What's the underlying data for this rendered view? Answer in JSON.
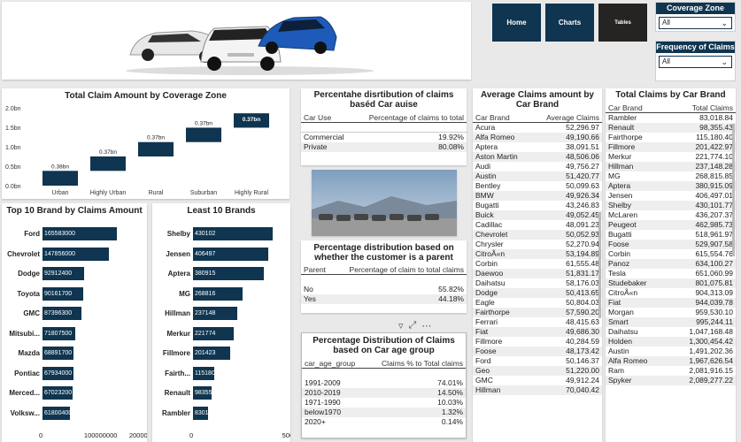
{
  "nav": {
    "home": "Home",
    "charts": "Charts",
    "tables": "Tables"
  },
  "slicers": [
    {
      "title": "Coverage Zone",
      "value": "All"
    },
    {
      "title": "Frequency of Claims",
      "value": "All"
    }
  ],
  "waterfall": {
    "title": "Total Claim Amount by Coverage Zone",
    "yticks": [
      "2.0bn",
      "1.5bn",
      "1.0bn",
      "0.5bn",
      "0.0bn"
    ],
    "chart_data": {
      "type": "bar",
      "categories": [
        "Urban",
        "Highly Urban",
        "Rural",
        "Suburban",
        "Highly Rural"
      ],
      "values": [
        0.38,
        0.37,
        0.37,
        0.37,
        0.37
      ],
      "labels": [
        "0.38bn",
        "0.37bn",
        "0.37bn",
        "0.37bn",
        "0.37bn"
      ],
      "ylim": [
        0,
        2.0
      ]
    }
  },
  "caruse": {
    "title": "Percentahe disrtibution of claims baséd Car auise",
    "headers": [
      "Car Use",
      "Percentage of claims to total"
    ],
    "rows": [
      [
        "Commercial",
        "19.92%"
      ],
      [
        "Private",
        "80.08%"
      ]
    ]
  },
  "avg": {
    "title": "Average Claims amount by Car Brand",
    "headers": [
      "Car Brand",
      "Average Claims"
    ],
    "rows": [
      [
        "Acura",
        "52,296.97"
      ],
      [
        "Alfa Romeo",
        "49,190.66"
      ],
      [
        "Aptera",
        "38,091.51"
      ],
      [
        "Aston Martin",
        "48,506.06"
      ],
      [
        "Audi",
        "49,756.27"
      ],
      [
        "Austin",
        "51,420.77"
      ],
      [
        "Bentley",
        "50,099.63"
      ],
      [
        "BMW",
        "49,926.34"
      ],
      [
        "Bugatti",
        "43,246.83"
      ],
      [
        "Buick",
        "49,052.45"
      ],
      [
        "Cadillac",
        "48,091.23"
      ],
      [
        "Chevrolet",
        "50,052.93"
      ],
      [
        "Chrysler",
        "52,270.94"
      ],
      [
        "CitroÃ«n",
        "53,194.89"
      ],
      [
        "Corbin",
        "61,555.48"
      ],
      [
        "Daewoo",
        "51,831.17"
      ],
      [
        "Daihatsu",
        "58,176.03"
      ],
      [
        "Dodge",
        "50,413.65"
      ],
      [
        "Eagle",
        "50,804.03"
      ],
      [
        "Fairthorpe",
        "57,590.20"
      ],
      [
        "Ferrari",
        "48,415.63"
      ],
      [
        "Fiat",
        "49,686.30"
      ],
      [
        "Fillmore",
        "40,284.59"
      ],
      [
        "Foose",
        "48,173.42"
      ],
      [
        "Ford",
        "50,146.37"
      ],
      [
        "Geo",
        "51,220.00"
      ],
      [
        "GMC",
        "49,912.24"
      ],
      [
        "Hillman",
        "70,040.42"
      ]
    ]
  },
  "total": {
    "title": "Total Claims by Car Brand",
    "headers": [
      "Car Brand",
      "Total Claims"
    ],
    "rows": [
      [
        "Rambler",
        "83,018.84"
      ],
      [
        "Renault",
        "98,355.43"
      ],
      [
        "Fairthorpe",
        "115,180.40"
      ],
      [
        "Fillmore",
        "201,422.97"
      ],
      [
        "Merkur",
        "221,774.10"
      ],
      [
        "Hillman",
        "237,148.28"
      ],
      [
        "MG",
        "268,815.85"
      ],
      [
        "Aptera",
        "380,915.09"
      ],
      [
        "Jensen",
        "406,497.01"
      ],
      [
        "Shelby",
        "430,101.77"
      ],
      [
        "McLaren",
        "436,207.37"
      ],
      [
        "Peugeot",
        "462,985.73"
      ],
      [
        "Bugatti",
        "518,961.97"
      ],
      [
        "Foose",
        "529,907.58"
      ],
      [
        "Corbin",
        "615,554.76"
      ],
      [
        "Panoz",
        "634,100.27"
      ],
      [
        "Tesla",
        "651,060.99"
      ],
      [
        "Studebaker",
        "801,075.81"
      ],
      [
        "CitroÃ«n",
        "904,313.09"
      ],
      [
        "Fiat",
        "944,039.78"
      ],
      [
        "Morgan",
        "959,530.10"
      ],
      [
        "Smart",
        "995,244.11"
      ],
      [
        "Daihatsu",
        "1,047,168.48"
      ],
      [
        "Holden",
        "1,300,454.42"
      ],
      [
        "Austin",
        "1,491,202.36"
      ],
      [
        "Alfa Romeo",
        "1,967,626.54"
      ],
      [
        "Ram",
        "2,081,916.15"
      ],
      [
        "Spyker",
        "2,089,277.22"
      ]
    ]
  },
  "top10": {
    "title": "Top 10 Brand by Claims Amount",
    "xticks": [
      "0",
      "100000000",
      "200000000"
    ],
    "chart_data": {
      "type": "bar",
      "categories": [
        "Ford",
        "Chevrolet",
        "Dodge",
        "Toyota",
        "GMC",
        "Mitsubi...",
        "Mazda",
        "Pontiac",
        "Merced...",
        "Volksw..."
      ],
      "values": [
        165583000,
        147856000,
        92912400,
        90161700,
        87396300,
        71807500,
        68891700,
        67934000,
        67023200,
        61800400
      ],
      "xlim": [
        0,
        220000000
      ]
    }
  },
  "least10": {
    "title": "Least 10 Brands",
    "xticks": [
      "0",
      "500000"
    ],
    "chart_data": {
      "type": "bar",
      "categories": [
        "Shelby",
        "Jensen",
        "Aptera",
        "MG",
        "Hillman",
        "Merkur",
        "Fillmore",
        "Fairth...",
        "Renault",
        "Rambler"
      ],
      "values": [
        430102,
        406497,
        380915,
        268816,
        237148,
        221774,
        201423,
        115180,
        98355,
        83019
      ],
      "labels": [
        "430102",
        "406497",
        "380915",
        "268816",
        "237148",
        "221774",
        "201423",
        "115180",
        "98355",
        "83019"
      ],
      "xlim": [
        0,
        650000
      ]
    }
  },
  "parent": {
    "title": "Percentage distribution based on whether the customer is a parent",
    "headers": [
      "Parent",
      "Percentage of claim to total claims"
    ],
    "rows": [
      [
        "No",
        "55.82%"
      ],
      [
        "Yes",
        "44.18%"
      ]
    ]
  },
  "agegroup": {
    "title": "Percentage Distribution of Claims based on Car age group",
    "headers": [
      "car_age_group",
      "Claims % to Total claims"
    ],
    "rows": [
      [
        "1991-2009",
        "74.01%"
      ],
      [
        "2010-2019",
        "14.50%"
      ],
      [
        "1971-1990",
        "10.03%"
      ],
      [
        "below1970",
        "1.32%"
      ],
      [
        "2020+",
        "0.14%"
      ]
    ]
  },
  "colors": {
    "navy": "#0f3550",
    "dark": "#252423"
  }
}
